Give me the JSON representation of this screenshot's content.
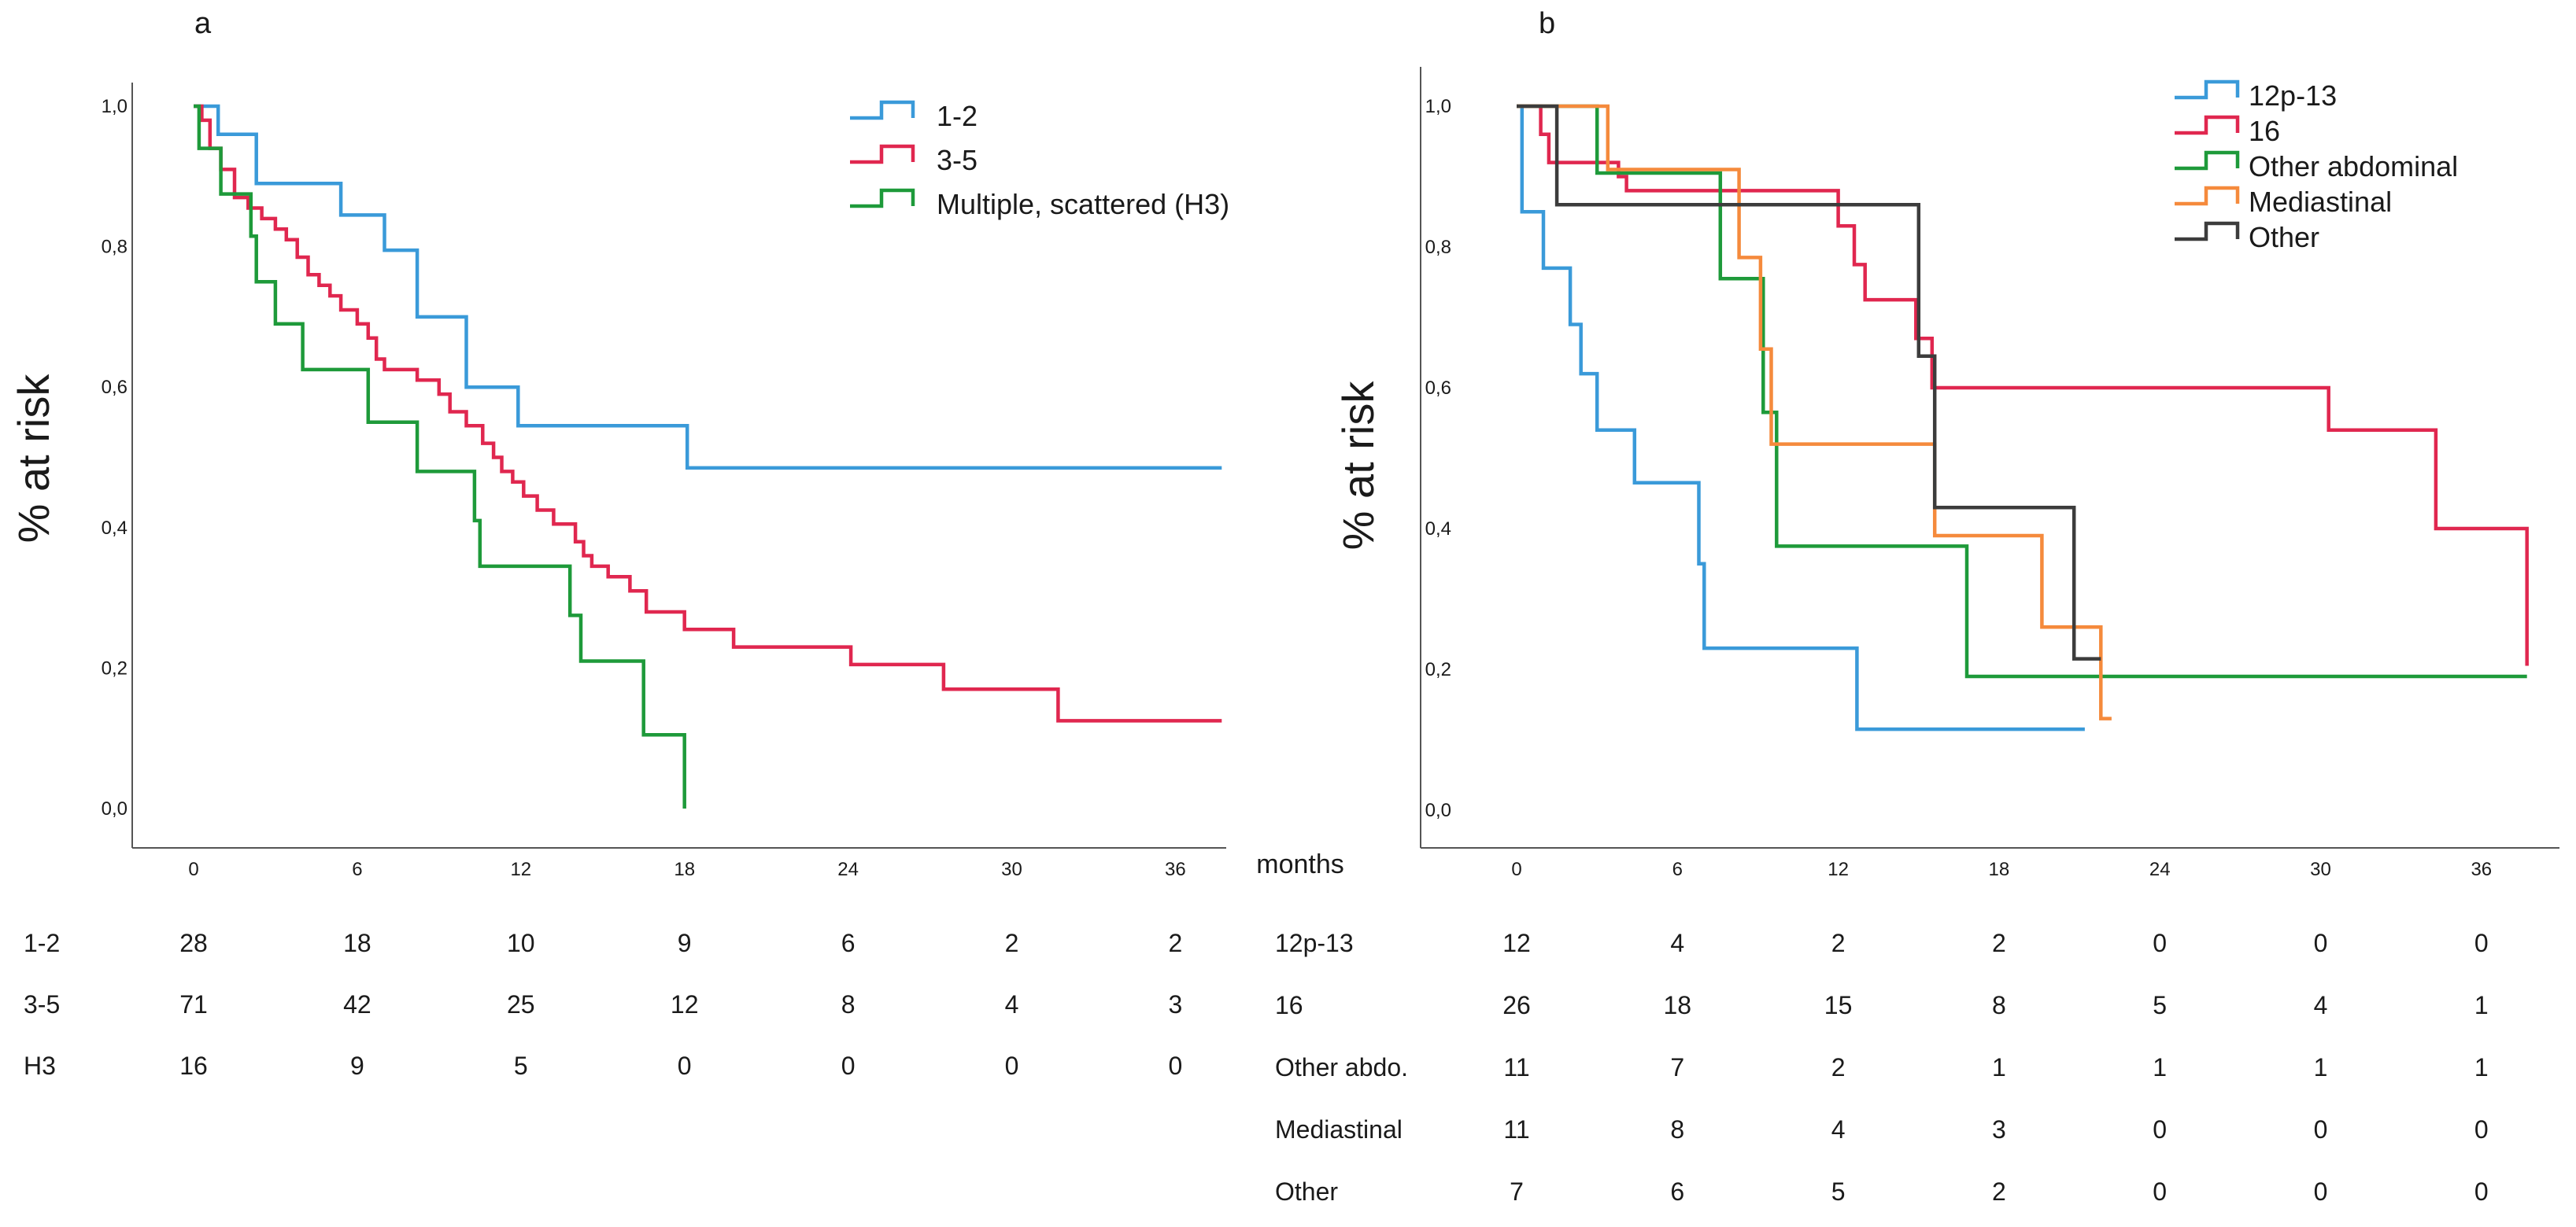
{
  "chart_data": [
    {
      "panel_label": "a",
      "type": "line",
      "step": true,
      "ylabel": "% at risk",
      "xlim": [
        -2,
        38
      ],
      "ylim": [
        -0.05,
        1.05
      ],
      "x_ticks": [
        0,
        6,
        12,
        18,
        24,
        30,
        36
      ],
      "x_tick_labels": [
        "0",
        "6",
        "12",
        "18",
        "24",
        "30",
        "36"
      ],
      "y_ticks": [
        0,
        0.2,
        0.4,
        0.6,
        0.8,
        1.0
      ],
      "y_tick_labels": [
        "0,0",
        "0,2",
        "0,4",
        "0,6",
        "0,8",
        "1,0"
      ],
      "legend_position": "top-right",
      "series": [
        {
          "name": "1-2",
          "color": "#3a9ad9",
          "x": [
            0,
            0.9,
            2.3,
            5.4,
            7.0,
            8.2,
            10.0,
            11.9,
            18.1,
            37.7
          ],
          "y": [
            1.0,
            0.96,
            0.89,
            0.845,
            0.795,
            0.7,
            0.6,
            0.545,
            0.485,
            0.485
          ]
        },
        {
          "name": "3-5",
          "color": "#e0274f",
          "x": [
            0,
            0.3,
            0.6,
            1.0,
            1.5,
            2.0,
            2.5,
            3.0,
            3.4,
            3.8,
            4.2,
            4.6,
            5.0,
            5.4,
            6.0,
            6.4,
            6.7,
            7.0,
            8.2,
            9.0,
            9.4,
            10.0,
            10.6,
            11.0,
            11.3,
            11.7,
            12.1,
            12.6,
            13.2,
            14.0,
            14.3,
            14.6,
            15.2,
            16.0,
            16.6,
            18.0,
            19.8,
            24.1,
            27.5,
            31.7,
            37.7
          ],
          "y": [
            1.0,
            0.98,
            0.94,
            0.91,
            0.87,
            0.855,
            0.84,
            0.825,
            0.81,
            0.785,
            0.76,
            0.745,
            0.73,
            0.71,
            0.69,
            0.67,
            0.64,
            0.625,
            0.61,
            0.59,
            0.565,
            0.545,
            0.52,
            0.5,
            0.48,
            0.465,
            0.445,
            0.425,
            0.405,
            0.38,
            0.36,
            0.345,
            0.33,
            0.31,
            0.28,
            0.255,
            0.23,
            0.205,
            0.17,
            0.125,
            0.125
          ]
        },
        {
          "name": "Multiple, scattered (H3)",
          "color": "#1e9a3a",
          "x": [
            0,
            0.2,
            1.0,
            2.1,
            2.3,
            3.0,
            4.0,
            6.4,
            8.2,
            10.3,
            10.5,
            13.8,
            14.2,
            16.5,
            18.0
          ],
          "y": [
            1.0,
            0.94,
            0.875,
            0.815,
            0.75,
            0.69,
            0.625,
            0.55,
            0.48,
            0.41,
            0.345,
            0.275,
            0.21,
            0.105,
            0.0
          ]
        }
      ],
      "risk_table": {
        "rows": [
          {
            "label": "1-2",
            "values": [
              "28",
              "18",
              "10",
              "9",
              "6",
              "2",
              "2"
            ]
          },
          {
            "label": "3-5",
            "values": [
              "71",
              "42",
              "25",
              "12",
              "8",
              "4",
              "3"
            ]
          },
          {
            "label": "H3",
            "values": [
              "16",
              "9",
              "5",
              "0",
              "0",
              "0",
              "0"
            ]
          }
        ]
      }
    },
    {
      "panel_label": "b",
      "type": "line",
      "step": true,
      "ylabel": "% at risk",
      "xlabel": "months",
      "xlim": [
        -2,
        38
      ],
      "ylim": [
        -0.05,
        1.05
      ],
      "x_ticks": [
        0,
        6,
        12,
        18,
        24,
        30,
        36
      ],
      "x_tick_labels": [
        "0",
        "6",
        "12",
        "18",
        "24",
        "30",
        "36"
      ],
      "y_ticks": [
        0,
        0.2,
        0.4,
        0.6,
        0.8,
        1.0
      ],
      "y_tick_labels": [
        "0,0",
        "0,2",
        "0,4",
        "0,6",
        "0,8",
        "1,0"
      ],
      "legend_position": "top-right",
      "series": [
        {
          "name": "12p-13",
          "color": "#3a9ad9",
          "x": [
            0,
            0.2,
            1.0,
            2.0,
            2.4,
            3.0,
            4.4,
            6.8,
            7.0,
            12.7,
            21.2
          ],
          "y": [
            1.0,
            0.85,
            0.77,
            0.69,
            0.62,
            0.54,
            0.465,
            0.35,
            0.23,
            0.115,
            0.115
          ]
        },
        {
          "name": "16",
          "color": "#e0274f",
          "x": [
            0,
            0.9,
            1.2,
            3.8,
            4.1,
            12.0,
            12.6,
            13.0,
            14.9,
            15.5,
            30.3,
            34.3,
            37.7
          ],
          "y": [
            1.0,
            0.96,
            0.92,
            0.9,
            0.88,
            0.83,
            0.775,
            0.725,
            0.67,
            0.6,
            0.54,
            0.4,
            0.205
          ]
        },
        {
          "name": "Other abdominal",
          "color": "#1e9a3a",
          "x": [
            0,
            3.0,
            7.6,
            9.2,
            9.7,
            16.8,
            37.7
          ],
          "y": [
            1.0,
            0.905,
            0.755,
            0.565,
            0.375,
            0.19,
            0.19
          ]
        },
        {
          "name": "Mediastinal",
          "color": "#f58a3c",
          "x": [
            0,
            3.4,
            8.3,
            9.1,
            9.5,
            15.6,
            19.6,
            21.8,
            22.2
          ],
          "y": [
            1.0,
            0.91,
            0.785,
            0.655,
            0.52,
            0.39,
            0.26,
            0.13,
            0.13
          ]
        },
        {
          "name": "Other",
          "color": "#3c3c3c",
          "x": [
            0,
            1.5,
            15.0,
            15.6,
            20.8,
            21.8
          ],
          "y": [
            1.0,
            0.86,
            0.645,
            0.43,
            0.215,
            0.215
          ]
        }
      ],
      "risk_table": {
        "rows": [
          {
            "label": "12p-13",
            "values": [
              "12",
              "4",
              "2",
              "2",
              "0",
              "0",
              "0"
            ]
          },
          {
            "label": "16",
            "values": [
              "26",
              "18",
              "15",
              "8",
              "5",
              "4",
              "1"
            ]
          },
          {
            "label": "Other abdo.",
            "values": [
              "11",
              "7",
              "2",
              "1",
              "1",
              "1",
              "1"
            ]
          },
          {
            "label": "Mediastinal",
            "values": [
              "11",
              "8",
              "4",
              "3",
              "0",
              "0",
              "0"
            ]
          },
          {
            "label": "Other",
            "values": [
              "7",
              "6",
              "5",
              "2",
              "0",
              "0",
              "0"
            ]
          }
        ]
      }
    }
  ]
}
